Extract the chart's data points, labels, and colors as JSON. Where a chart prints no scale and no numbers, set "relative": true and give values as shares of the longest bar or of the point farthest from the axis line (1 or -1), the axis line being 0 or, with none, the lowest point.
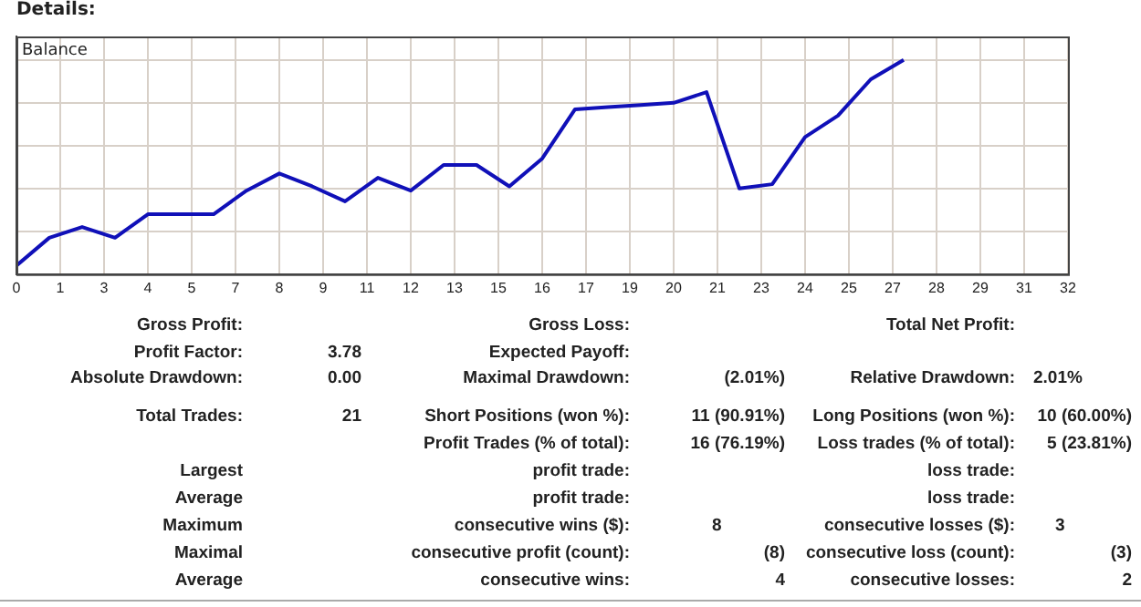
{
  "chart_data": {
    "type": "line",
    "title": "Details:",
    "subtitle": "Balance",
    "relative": true,
    "grid": true,
    "legend": false,
    "tick_labels": "x",
    "marker": "none",
    "line_style": "solid",
    "x": [
      0,
      1,
      2,
      3,
      4,
      5,
      6,
      7,
      8,
      9,
      10,
      11,
      12,
      13,
      14,
      15,
      16,
      17,
      18,
      19,
      20,
      21,
      22,
      23,
      24,
      25,
      26,
      27
    ],
    "xlim": [
      0,
      32
    ],
    "xticks": [
      {
        "value": 0,
        "label": "0"
      },
      {
        "value": 1.333,
        "label": "1"
      },
      {
        "value": 2.667,
        "label": "3"
      },
      {
        "value": 4,
        "label": "4"
      },
      {
        "value": 5.333,
        "label": "5"
      },
      {
        "value": 6.667,
        "label": "7"
      },
      {
        "value": 8,
        "label": "8"
      },
      {
        "value": 9.333,
        "label": "9"
      },
      {
        "value": 10.667,
        "label": "11"
      },
      {
        "value": 12,
        "label": "12"
      },
      {
        "value": 13.333,
        "label": "13"
      },
      {
        "value": 14.667,
        "label": "15"
      },
      {
        "value": 16,
        "label": "16"
      },
      {
        "value": 17.333,
        "label": "17"
      },
      {
        "value": 18.667,
        "label": "19"
      },
      {
        "value": 20,
        "label": "20"
      },
      {
        "value": 21.333,
        "label": "21"
      },
      {
        "value": 22.667,
        "label": "23"
      },
      {
        "value": 24,
        "label": "24"
      },
      {
        "value": 25.333,
        "label": "25"
      },
      {
        "value": 26.667,
        "label": "27"
      },
      {
        "value": 28,
        "label": "28"
      },
      {
        "value": 29.333,
        "label": "29"
      },
      {
        "value": 30.667,
        "label": "31"
      },
      {
        "value": 32,
        "label": "32"
      }
    ],
    "series": [
      {
        "color": "#1010b8",
        "values": [
          0.04,
          0.17,
          0.22,
          0.17,
          0.28,
          0.28,
          0.28,
          0.39,
          0.47,
          0.41,
          0.34,
          0.45,
          0.39,
          0.51,
          0.51,
          0.41,
          0.54,
          0.77,
          0.78,
          0.79,
          0.8,
          0.85,
          0.4,
          0.42,
          0.64,
          0.74,
          0.91,
          1
        ]
      }
    ],
    "annotations": [
      "Gross Profit:",
      "Gross Loss:",
      "Total Net Profit:",
      "Profit Factor:",
      "3.78",
      "Expected Payoff:",
      "Absolute Drawdown:",
      "0.00",
      "Maximal Drawdown:",
      "(2.01%)",
      "Relative Drawdown:",
      "2.01%",
      "Total Trades:",
      "21",
      "Short Positions (won %):",
      "11 (90.91%)",
      "Long Positions (won %):",
      "10 (60.00%)",
      "Profit Trades (% of total):",
      "16 (76.19%)",
      "Loss trades (% of total):",
      "5 (23.81%)",
      "Largest",
      "profit trade:",
      "loss trade:",
      "Average",
      "profit trade:",
      "loss trade:",
      "Maximum",
      "consecutive wins ($):",
      "8",
      "consecutive losses ($):",
      "3",
      "Maximal",
      "consecutive profit (count):",
      "(8)",
      "consecutive loss (count):",
      "(3)",
      "Average",
      "consecutive wins:",
      "4",
      "consecutive losses:",
      "2"
    ]
  }
}
